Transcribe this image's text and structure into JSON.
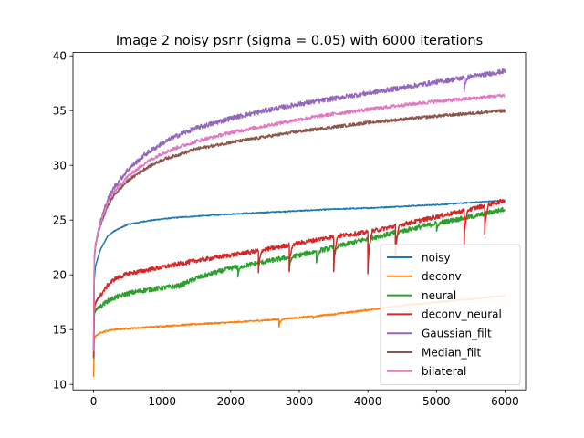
{
  "chart_data": {
    "type": "line",
    "title": "Image 2 noisy psnr (sigma = 0.05) with 6000 iterations",
    "xlabel": "",
    "ylabel": "",
    "xlim": [
      -300,
      6300
    ],
    "ylim": [
      9.5,
      40.3
    ],
    "x_ticks": [
      0,
      1000,
      2000,
      3000,
      4000,
      5000,
      6000
    ],
    "y_ticks": [
      10,
      15,
      20,
      25,
      30,
      35,
      40
    ],
    "grid": false,
    "legend_position": "lower-right",
    "x": [
      0,
      10,
      25,
      50,
      100,
      200,
      300,
      500,
      750,
      1000,
      1250,
      1500,
      2000,
      2500,
      3000,
      3500,
      4000,
      4500,
      5000,
      5500,
      6000
    ],
    "series": [
      {
        "name": "noisy",
        "color": "#1f77b4",
        "values": [
          13.2,
          19.5,
          20.7,
          21.3,
          22.3,
          23.5,
          24.0,
          24.6,
          24.9,
          25.1,
          25.25,
          25.35,
          25.55,
          25.7,
          25.85,
          26.0,
          26.1,
          26.25,
          26.4,
          26.6,
          26.8
        ]
      },
      {
        "name": "deconv",
        "color": "#ff7f0e",
        "values": [
          10.7,
          14.1,
          14.4,
          14.5,
          14.7,
          14.9,
          15.0,
          15.1,
          15.2,
          15.3,
          15.4,
          15.5,
          15.65,
          15.85,
          16.1,
          16.4,
          16.8,
          17.2,
          17.5,
          17.8,
          18.1
        ]
      },
      {
        "name": "neural",
        "color": "#2ca02c",
        "values": [
          12.4,
          16.3,
          16.7,
          16.9,
          17.1,
          17.6,
          17.9,
          18.3,
          18.6,
          18.8,
          19.0,
          19.7,
          20.6,
          21.2,
          21.8,
          22.5,
          23.3,
          24.0,
          24.7,
          25.3,
          26.0
        ]
      },
      {
        "name": "deconv_neural",
        "color": "#d62728",
        "values": [
          12.5,
          16.8,
          17.4,
          17.7,
          18.1,
          19.0,
          19.6,
          20.1,
          20.4,
          20.7,
          21.0,
          21.3,
          21.8,
          22.3,
          22.9,
          23.5,
          23.9,
          24.6,
          25.3,
          26.0,
          26.8
        ]
      },
      {
        "name": "Gaussian_filt",
        "color": "#9467bd",
        "values": [
          13.1,
          21.5,
          22.7,
          23.5,
          24.9,
          26.8,
          28.0,
          29.6,
          31.0,
          32.0,
          32.8,
          33.4,
          34.3,
          35.0,
          35.6,
          36.1,
          36.6,
          37.1,
          37.6,
          38.1,
          38.6
        ]
      },
      {
        "name": "Median_filt",
        "color": "#8c564b",
        "values": [
          13.0,
          21.3,
          22.5,
          23.3,
          24.5,
          26.2,
          27.3,
          28.6,
          29.7,
          30.5,
          31.0,
          31.5,
          32.1,
          32.6,
          33.1,
          33.5,
          33.9,
          34.2,
          34.5,
          34.75,
          35.0
        ]
      },
      {
        "name": "bilateral",
        "color": "#e377c2",
        "values": [
          13.1,
          21.4,
          22.6,
          23.4,
          24.7,
          26.5,
          27.6,
          29.0,
          30.2,
          31.1,
          31.7,
          32.2,
          33.0,
          33.6,
          34.2,
          34.7,
          35.1,
          35.5,
          35.85,
          36.1,
          36.4
        ]
      }
    ],
    "dips": {
      "deconv": [
        [
          2700,
          15.2
        ],
        [
          3200,
          16.0
        ]
      ],
      "neural": [
        [
          2100,
          19.8
        ],
        [
          2850,
          20.4
        ],
        [
          3250,
          21.1
        ],
        [
          3500,
          21.2
        ],
        [
          4000,
          22.0
        ],
        [
          4400,
          22.9
        ],
        [
          5000,
          24.0
        ]
      ],
      "deconv_neural": [
        [
          2400,
          20.2
        ],
        [
          2850,
          20.3
        ],
        [
          3500,
          20.3
        ],
        [
          4000,
          20.1
        ],
        [
          4400,
          21.4
        ],
        [
          5400,
          22.6
        ],
        [
          5700,
          23.7
        ]
      ],
      "Gaussian_filt": [
        [
          5400,
          36.7
        ]
      ]
    }
  }
}
